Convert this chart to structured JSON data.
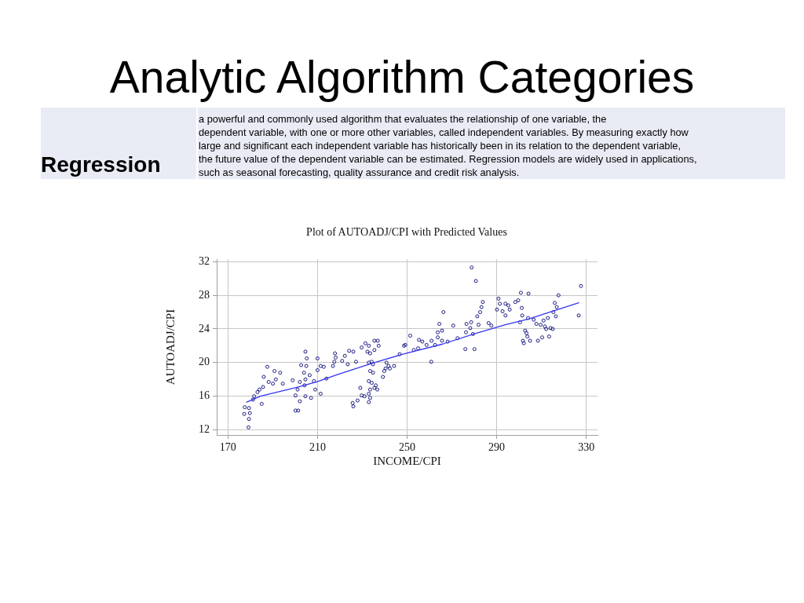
{
  "chart_data": {
    "type": "scatter",
    "title": "Analytic Algorithm Categories",
    "subtitle": "Plot of AUTOADJ/CPI with Predicted Values",
    "xlabel": "INCOME/CPI",
    "ylabel": "AUTOADJ/CPI",
    "annotations": [
      "Regression",
      "a powerful and commonly used algorithm that evaluates the relationship of one variable, the\ndependent variable, with one or more other variables, called independent variables. By measuring exactly how\nlarge and significant each independent variable has historically been in its relation to the dependent variable,\nthe future value of the dependent variable can be estimated. Regression models are widely used in applications,\nsuch as seasonal forecasting, quality assurance and credit risk analysis."
    ],
    "xlim": [
      165,
      335
    ],
    "ylim": [
      11.4,
      32.3
    ],
    "xticks": [
      170,
      210,
      250,
      290,
      330
    ],
    "yticks": [
      12,
      16,
      20,
      24,
      28,
      32
    ],
    "grid": true,
    "marker": "circle",
    "series": [
      {
        "color": "#1c1c84",
        "x": [
          177.5,
          179.4,
          177.3,
          179.8,
          179.4,
          179.2,
          181.2,
          181.7,
          183.2,
          184.1,
          185.1,
          187.6,
          186.0,
          185.7,
          188.2,
          190.8,
          193.3,
          191.4,
          190.1,
          194.5,
          198.9,
          200.2,
          201.4,
          200.2,
          202.1,
          201.1,
          202.1,
          202.7,
          204.0,
          204.6,
          205.2,
          205.0,
          204.6,
          204.2,
          204.6,
          206.5,
          207.1,
          208.4,
          210.0,
          210.0,
          211.4,
          209.0,
          211.4,
          212.8,
          214.0,
          217.8,
          218.1,
          217.5,
          216.9,
          221.0,
          222.2,
          224.1,
          223.5,
          226.0,
          227.2,
          225.7,
          226.0,
          227.9,
          229.1,
          229.7,
          231.0,
          229.7,
          231.4,
          232.3,
          232.9,
          233.5,
          234.2,
          234.8,
          232.9,
          233.5,
          234.8,
          232.9,
          234.2,
          233.5,
          232.9,
          233.5,
          232.9,
          235.4,
          236.7,
          236.0,
          235.4,
          236.9,
          237.3,
          235.4,
          239.2,
          239.8,
          240.8,
          240.4,
          241.7,
          242.3,
          244.2,
          246.7,
          248.6,
          249.2,
          251.4,
          253.0,
          254.9,
          255.3,
          256.8,
          258.7,
          260.8,
          260.9,
          262.5,
          263.7,
          263.7,
          264.4,
          265.6,
          265.6,
          266.2,
          268.1,
          270.6,
          272.5,
          276.0,
          276.3,
          276.5,
          278.2,
          278.6,
          278.8,
          279.4,
          280.1,
          280.7,
          281.3,
          281.9,
          282.6,
          283.2,
          283.8,
          286.4,
          287.6,
          290.1,
          290.8,
          291.4,
          292.6,
          293.9,
          293.9,
          295.2,
          295.8,
          298.3,
          299.6,
          300.8,
          301.2,
          300.4,
          301.4,
          301.7,
          302.1,
          302.7,
          303.3,
          303.7,
          304.0,
          304.2,
          304.9,
          306.5,
          307.7,
          308.4,
          309.6,
          310.3,
          310.9,
          311.5,
          312.1,
          312.8,
          313.4,
          314.0,
          315.0,
          315.3,
          315.9,
          316.4,
          316.8,
          317.6,
          326.6,
          327.6
        ],
        "values": [
          14.7,
          14.6,
          13.9,
          14.0,
          13.3,
          12.3,
          15.6,
          16.0,
          16.5,
          16.8,
          15.1,
          19.5,
          18.3,
          17.1,
          17.7,
          19.0,
          18.8,
          18.0,
          17.5,
          17.5,
          17.9,
          16.1,
          14.3,
          14.3,
          15.4,
          16.8,
          17.7,
          19.7,
          18.8,
          21.3,
          20.5,
          19.6,
          18.0,
          17.3,
          16.0,
          18.5,
          15.8,
          17.8,
          20.5,
          19.1,
          19.6,
          16.8,
          16.3,
          19.5,
          18.1,
          21.1,
          20.6,
          20.1,
          19.6,
          20.2,
          20.8,
          21.4,
          19.8,
          21.3,
          20.1,
          15.2,
          14.8,
          15.5,
          17.0,
          16.1,
          16.0,
          21.8,
          22.3,
          21.3,
          22.0,
          21.1,
          20.1,
          19.8,
          20.0,
          19.0,
          18.8,
          17.8,
          17.6,
          16.8,
          16.3,
          15.8,
          15.3,
          17.0,
          16.8,
          17.3,
          22.6,
          22.6,
          22.0,
          21.5,
          18.3,
          19.0,
          20.0,
          19.3,
          19.6,
          19.3,
          19.6,
          21.0,
          22.0,
          22.1,
          23.2,
          21.5,
          21.7,
          22.7,
          22.5,
          22.1,
          20.1,
          22.6,
          22.1,
          23.0,
          23.6,
          24.6,
          23.8,
          22.6,
          26.0,
          22.5,
          24.4,
          22.9,
          21.6,
          23.6,
          24.6,
          24.1,
          24.8,
          31.3,
          23.4,
          21.6,
          29.7,
          25.5,
          24.5,
          26.0,
          26.6,
          27.2,
          24.7,
          24.4,
          26.3,
          27.6,
          27.0,
          26.1,
          27.0,
          25.6,
          26.8,
          26.3,
          27.2,
          27.4,
          28.3,
          26.5,
          24.8,
          25.6,
          22.6,
          22.3,
          23.8,
          23.5,
          23.1,
          25.3,
          28.2,
          22.6,
          25.1,
          24.6,
          22.6,
          24.5,
          23.0,
          25.0,
          24.3,
          24.0,
          25.3,
          23.1,
          24.1,
          24.0,
          26.0,
          27.1,
          25.5,
          26.6,
          28.0,
          25.6,
          29.1
        ]
      },
      {
        "type": "line",
        "color": "#3535f0",
        "marker": "none",
        "x": [
          178.4,
          184.5,
          201.4,
          209.6,
          219.1,
          234.2,
          249.4,
          265.8,
          279.8,
          293.8,
          304.4,
          326.6
        ],
        "values": [
          15.3,
          16.0,
          17.1,
          17.7,
          18.6,
          19.9,
          21.1,
          22.2,
          23.4,
          24.5,
          25.2,
          27.1
        ]
      }
    ]
  }
}
